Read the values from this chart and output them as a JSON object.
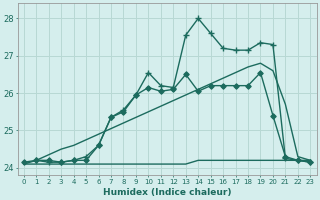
{
  "title": "",
  "xlabel": "Humidex (Indice chaleur)",
  "xlim": [
    -0.5,
    23.5
  ],
  "ylim": [
    23.8,
    28.4
  ],
  "xticks": [
    0,
    1,
    2,
    3,
    4,
    5,
    6,
    7,
    8,
    9,
    10,
    11,
    12,
    13,
    14,
    15,
    16,
    17,
    18,
    19,
    20,
    21,
    22,
    23
  ],
  "yticks": [
    24,
    25,
    26,
    27,
    28
  ],
  "bg_color": "#d5eeed",
  "line_color": "#1c6b5e",
  "grid_color": "#b8d8d4",
  "lines": [
    {
      "x": [
        0,
        1,
        2,
        3,
        4,
        5,
        6,
        7,
        8,
        9,
        10,
        11,
        12,
        13,
        14,
        15,
        16,
        17,
        18,
        19,
        20,
        21,
        22,
        23
      ],
      "y": [
        24.1,
        24.1,
        24.1,
        24.1,
        24.1,
        24.1,
        24.1,
        24.1,
        24.1,
        24.1,
        24.1,
        24.1,
        24.1,
        24.1,
        24.2,
        24.2,
        24.2,
        24.2,
        24.2,
        24.2,
        24.2,
        24.2,
        24.2,
        24.2
      ],
      "marker": null,
      "lw": 1.0
    },
    {
      "x": [
        0,
        1,
        2,
        3,
        4,
        5,
        6,
        7,
        8,
        9,
        10,
        11,
        12,
        13,
        14,
        15,
        16,
        17,
        18,
        19,
        20,
        21,
        22,
        23
      ],
      "y": [
        24.1,
        24.2,
        24.35,
        24.5,
        24.6,
        24.75,
        24.9,
        25.05,
        25.2,
        25.35,
        25.5,
        25.65,
        25.8,
        25.95,
        26.1,
        26.25,
        26.4,
        26.55,
        26.7,
        26.8,
        26.6,
        25.7,
        24.3,
        24.2
      ],
      "marker": null,
      "lw": 1.0
    },
    {
      "x": [
        0,
        1,
        2,
        3,
        4,
        5,
        6,
        7,
        8,
        9,
        10,
        11,
        12,
        13,
        14,
        15,
        16,
        17,
        18,
        19,
        20,
        21,
        22,
        23
      ],
      "y": [
        24.15,
        24.2,
        24.2,
        24.15,
        24.2,
        24.2,
        24.6,
        25.35,
        25.5,
        25.95,
        26.15,
        26.05,
        26.1,
        26.5,
        26.05,
        26.2,
        26.2,
        26.2,
        26.2,
        26.55,
        25.4,
        24.3,
        24.2,
        24.15
      ],
      "marker": "D",
      "lw": 1.0
    },
    {
      "x": [
        1,
        2,
        3,
        4,
        5,
        6,
        7,
        8,
        9,
        10,
        11,
        12,
        13,
        14,
        15,
        16,
        17,
        18,
        19,
        20,
        21,
        22,
        23
      ],
      "y": [
        24.2,
        24.15,
        24.15,
        24.2,
        24.3,
        24.6,
        25.35,
        25.55,
        25.95,
        26.55,
        26.2,
        26.15,
        27.55,
        28.0,
        27.6,
        27.2,
        27.15,
        27.15,
        27.35,
        27.3,
        24.25,
        24.2,
        24.15
      ],
      "marker": "+",
      "lw": 1.0
    }
  ]
}
